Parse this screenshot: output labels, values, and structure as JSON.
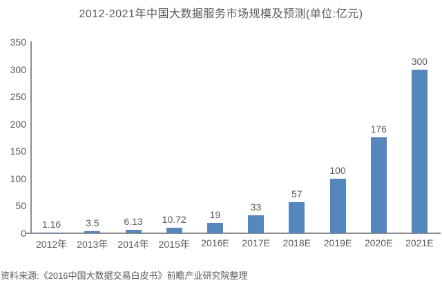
{
  "chart_data": {
    "type": "bar",
    "title": "2012-2021年中国大数据服务市场规模及预测(单位:亿元)",
    "categories": [
      "2012年",
      "2013年",
      "2014年",
      "2015年",
      "2016E",
      "2017E",
      "2018E",
      "2019E",
      "2020E",
      "2021E"
    ],
    "values": [
      1.16,
      3.5,
      6.13,
      10.72,
      19,
      33,
      57,
      100,
      176,
      300
    ],
    "value_labels": [
      "1.16",
      "3.5",
      "6.13",
      "10.72",
      "19",
      "33",
      "57",
      "100",
      "176",
      "300"
    ],
    "ylim": [
      0,
      350
    ],
    "ytick_step": 50,
    "yticks": [
      0,
      50,
      100,
      150,
      200,
      250,
      300,
      350
    ],
    "xlabel": "",
    "ylabel": "",
    "grid": false,
    "legend": null,
    "bar_color": "#5586BC",
    "axis_color": "#8c8c8c",
    "text_color": "#595959"
  },
  "footer": {
    "source": "资料来源:《2016中国大数据交易白皮书》前瞻产业研究院整理"
  }
}
